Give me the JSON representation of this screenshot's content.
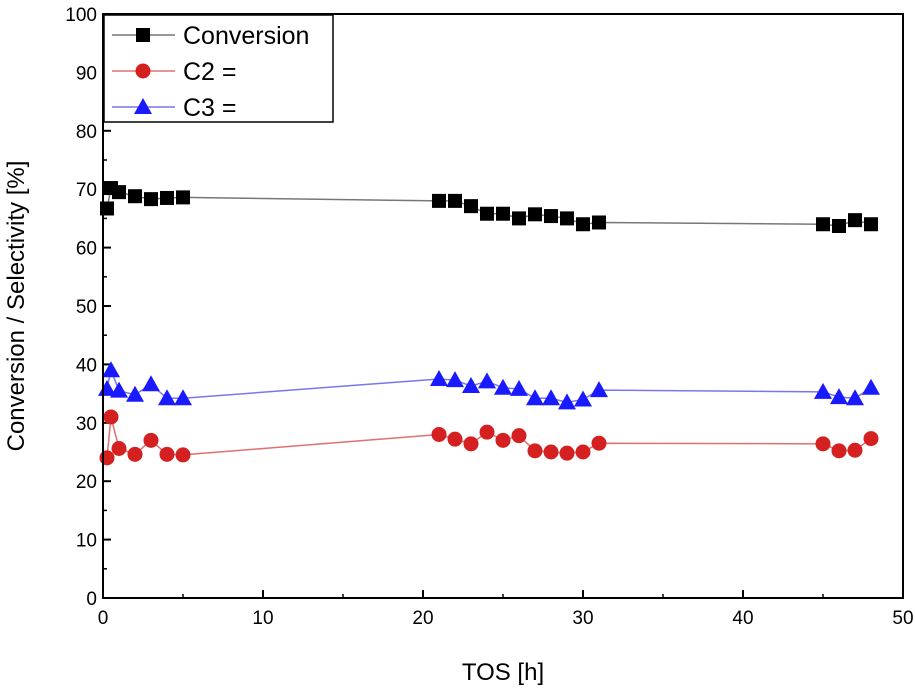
{
  "chart_data": {
    "type": "line",
    "title": "",
    "xlabel": "TOS [h]",
    "ylabel": "Conversion / Selectivity [%]",
    "xlim": [
      0,
      50
    ],
    "ylim": [
      0,
      100
    ],
    "xticks": [
      0,
      10,
      20,
      30,
      40,
      50
    ],
    "yticks": [
      0,
      10,
      20,
      30,
      40,
      50,
      60,
      70,
      80,
      90,
      100
    ],
    "grid": false,
    "legend_position": "top-left",
    "series": [
      {
        "name": "Conversion",
        "color": "#000000",
        "line_color": "#777777",
        "marker": "square",
        "x": [
          0.25,
          0.5,
          1,
          2,
          3,
          4,
          5,
          21,
          22,
          23,
          24,
          25,
          26,
          27,
          28,
          29,
          30,
          31,
          45,
          46,
          47,
          48
        ],
        "y": [
          66.7,
          70.2,
          69.5,
          68.8,
          68.3,
          68.5,
          68.6,
          68,
          68,
          67.1,
          65.8,
          65.8,
          65,
          65.7,
          65.4,
          65,
          64,
          64.3,
          64,
          63.7,
          64.7,
          64
        ]
      },
      {
        "name": "C2 =",
        "color": "#d42020",
        "line_color": "#e07070",
        "marker": "circle",
        "x": [
          0.25,
          0.5,
          1,
          2,
          3,
          4,
          5,
          21,
          22,
          23,
          24,
          25,
          26,
          27,
          28,
          29,
          30,
          31,
          45,
          46,
          47,
          48
        ],
        "y": [
          24,
          31,
          25.6,
          24.6,
          27,
          24.6,
          24.5,
          28,
          27.2,
          26.4,
          28.4,
          27,
          27.8,
          25.2,
          25,
          24.8,
          25,
          26.5,
          26.4,
          25.2,
          25.3,
          27.3
        ]
      },
      {
        "name": "C3 =",
        "color": "#1a1aff",
        "line_color": "#7777ee",
        "marker": "triangle",
        "x": [
          0.25,
          0.5,
          1,
          2,
          3,
          4,
          5,
          21,
          22,
          23,
          24,
          25,
          26,
          27,
          28,
          29,
          30,
          31,
          45,
          46,
          47,
          48
        ],
        "y": [
          35.8,
          39,
          35.5,
          34.8,
          36.6,
          34.2,
          34.2,
          37.5,
          37.3,
          36.3,
          37.1,
          36,
          35.8,
          34.2,
          34.2,
          33.5,
          34,
          35.6,
          35.3,
          34.4,
          34.2,
          36
        ]
      }
    ]
  }
}
